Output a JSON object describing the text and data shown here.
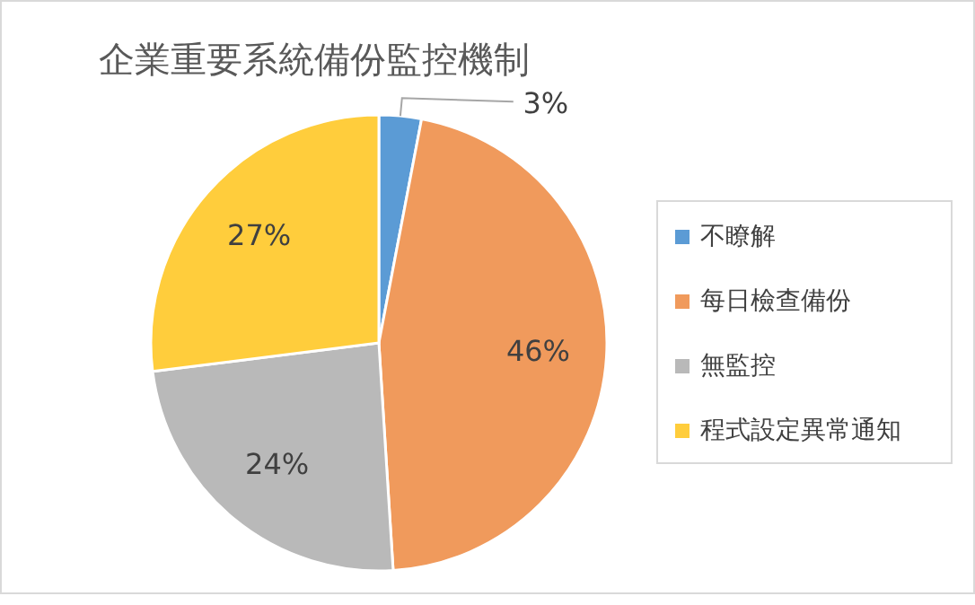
{
  "chart_data": {
    "type": "pie",
    "title": "企業重要系統備份監控機制",
    "categories": [
      "不瞭解",
      "每日檢查備份",
      "無監控",
      "程式設定異常通知"
    ],
    "values": [
      3,
      46,
      24,
      27
    ],
    "colors": [
      "#5b9bd5",
      "#f09a5c",
      "#b9b9b9",
      "#ffcd3c"
    ],
    "value_labels": [
      "3%",
      "46%",
      "24%",
      "27%"
    ],
    "legend": "right"
  }
}
